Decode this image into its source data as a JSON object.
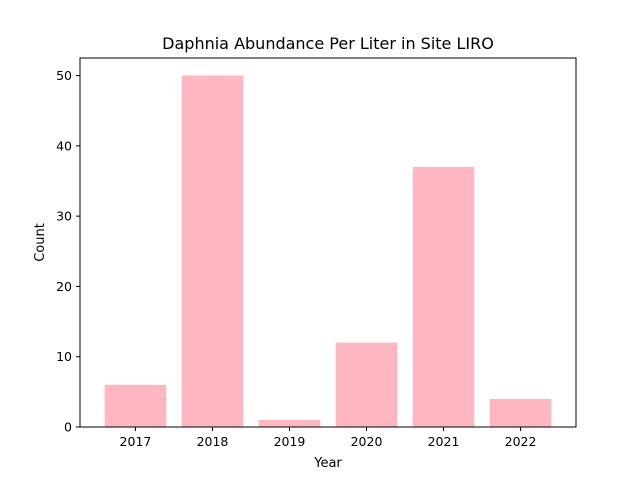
{
  "chart_data": {
    "type": "bar",
    "title": "Daphnia Abundance Per Liter in Site LIRO",
    "xlabel": "Year",
    "ylabel": "Count",
    "categories": [
      "2017",
      "2018",
      "2019",
      "2020",
      "2021",
      "2022"
    ],
    "values": [
      6,
      50,
      1,
      12,
      37,
      4
    ],
    "ylim": [
      0,
      52.5
    ],
    "yticks": [
      0,
      10,
      20,
      30,
      40,
      50
    ],
    "grid": false,
    "legend": "none",
    "bar_color": "#ffb6c1"
  }
}
